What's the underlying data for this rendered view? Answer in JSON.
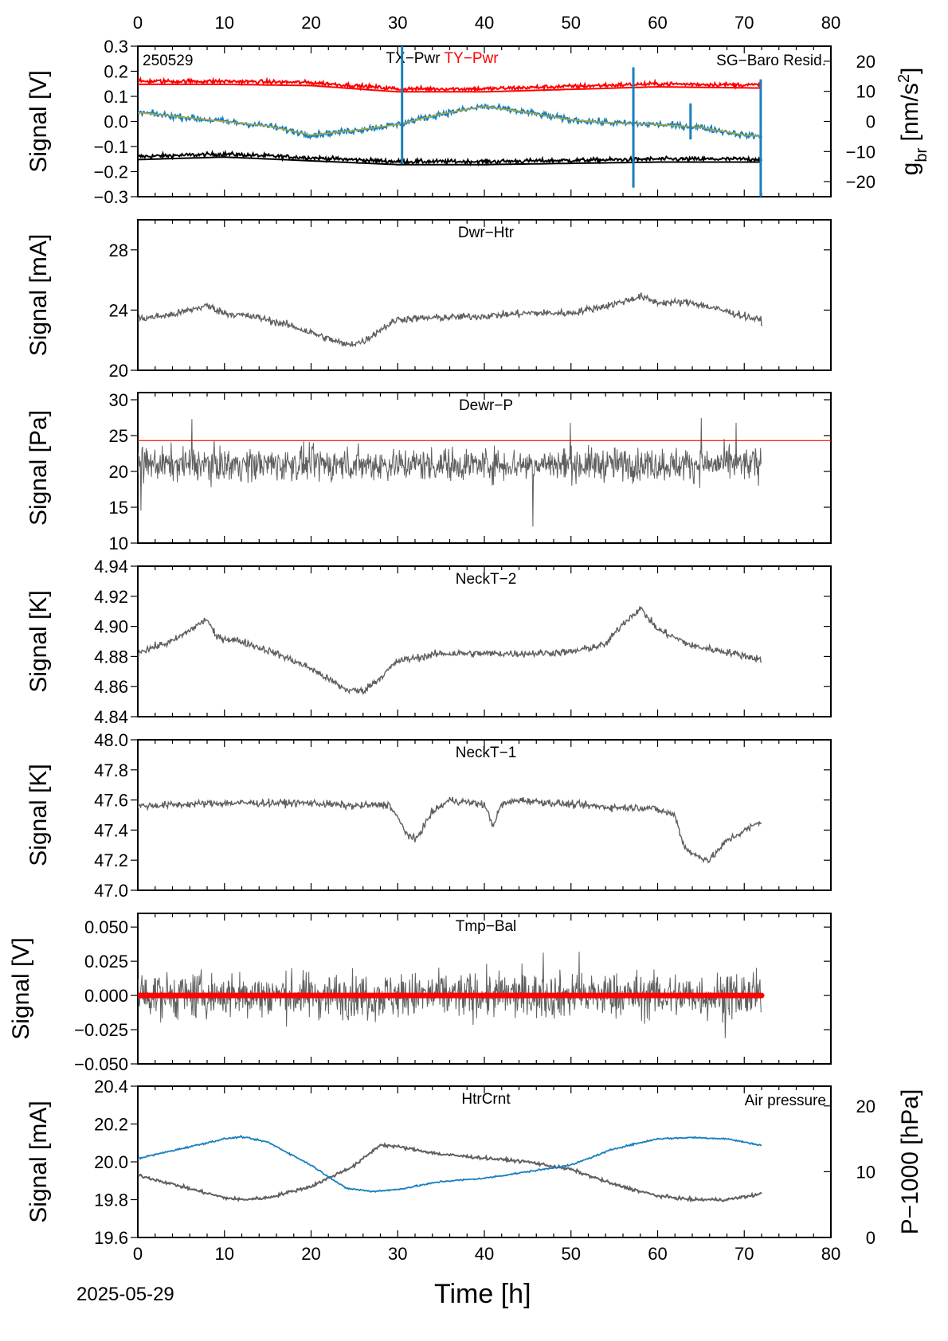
{
  "date_label": "2025-05-29",
  "xaxis": {
    "label": "Time [h]",
    "range": [
      0,
      80
    ],
    "ticks": [
      "0",
      "10",
      "20",
      "30",
      "40",
      "50",
      "60",
      "70",
      "80"
    ]
  },
  "colors": {
    "trace": "#5f5f5f",
    "red": "#ff0000",
    "blue": "#1a7fbf",
    "olive": "#a8a838",
    "black": "#000000"
  },
  "chart_data": [
    {
      "type": "line",
      "title": "TX−Pwr",
      "title2": "TY−Pwr",
      "corner_label": "250529",
      "right_label": "SG−Baro Resid.",
      "ylabel": "Signal [V]",
      "ylim": [
        -0.3,
        0.3
      ],
      "yticks": [
        "0.3",
        "0.2",
        "0.1",
        "0.0",
        "−0.1",
        "−0.2",
        "−0.3"
      ],
      "y2label_base": "g",
      "y2label_sub": "br",
      "y2label_rest": " [nm/s",
      "y2label_sup": "2",
      "y2label_end": "]",
      "y2lim": [
        -25,
        25
      ],
      "y2ticks": [
        "20",
        "10",
        "0",
        "−10",
        "−20"
      ],
      "series": [
        {
          "name": "TX−Pwr",
          "x": [
            0,
            10,
            20,
            30,
            40,
            50,
            60,
            72
          ],
          "y": [
            -0.14,
            -0.13,
            -0.145,
            -0.16,
            -0.16,
            -0.155,
            -0.15,
            -0.15
          ]
        },
        {
          "name": "TY−Pwr",
          "x": [
            0,
            10,
            20,
            30,
            40,
            50,
            60,
            72
          ],
          "y": [
            0.16,
            0.16,
            0.155,
            0.13,
            0.13,
            0.14,
            0.15,
            0.145
          ]
        },
        {
          "name": "SG−Baro Resid.",
          "x": [
            0,
            5,
            10,
            15,
            20,
            25,
            30,
            35,
            40,
            45,
            50,
            55,
            60,
            65,
            70,
            72
          ],
          "y": [
            3,
            1.5,
            0,
            -1.5,
            -4.5,
            -3,
            -1,
            2.5,
            5,
            3,
            0.5,
            -0.5,
            -1,
            -2,
            -4.5,
            -5
          ]
        }
      ]
    },
    {
      "type": "line",
      "title": "Dwr−Htr",
      "ylabel": "Signal [mA]",
      "ylim": [
        20,
        30
      ],
      "yticks": [
        "28",
        "24",
        "20"
      ],
      "series": [
        {
          "x": [
            0,
            4,
            8,
            10,
            14,
            18,
            22,
            24,
            26,
            28,
            30,
            35,
            40,
            45,
            50,
            55,
            58,
            60,
            64,
            68,
            72
          ],
          "y": [
            23.4,
            23.7,
            24.3,
            23.8,
            23.5,
            22.9,
            22.1,
            21.7,
            21.9,
            22.7,
            23.4,
            23.5,
            23.6,
            23.8,
            23.8,
            24.4,
            24.9,
            24.5,
            24.5,
            23.9,
            23.3
          ]
        }
      ]
    },
    {
      "type": "line",
      "title": "Dewr−P",
      "ylabel": "Signal [Pa]",
      "ylim": [
        10,
        31
      ],
      "yticks": [
        "30",
        "25",
        "20",
        "15",
        "10"
      ],
      "reference_line": 24.3,
      "mean": 21,
      "series": [
        {
          "x": [
            0,
            72
          ],
          "y": [
            21,
            21
          ]
        }
      ]
    },
    {
      "type": "line",
      "title": "NeckT−2",
      "ylabel": "Signal [K]",
      "ylim": [
        4.84,
        4.94
      ],
      "yticks": [
        "4.94",
        "4.92",
        "4.90",
        "4.88",
        "4.86",
        "4.84"
      ],
      "series": [
        {
          "x": [
            0,
            4,
            8,
            9,
            12,
            16,
            20,
            24,
            26,
            28,
            30,
            35,
            40,
            45,
            50,
            54,
            56,
            58,
            60,
            64,
            68,
            72
          ],
          "y": [
            4.883,
            4.89,
            4.905,
            4.893,
            4.89,
            4.882,
            4.872,
            4.858,
            4.857,
            4.866,
            4.877,
            4.882,
            4.882,
            4.882,
            4.883,
            4.888,
            4.902,
            4.912,
            4.898,
            4.887,
            4.883,
            4.878
          ]
        }
      ]
    },
    {
      "type": "line",
      "title": "NeckT−1",
      "ylabel": "Signal [K]",
      "ylim": [
        47.0,
        48.0
      ],
      "yticks": [
        "48.0",
        "47.8",
        "47.6",
        "47.4",
        "47.2",
        "47.0"
      ],
      "series": [
        {
          "x": [
            0,
            5,
            10,
            20,
            25,
            29,
            30,
            31,
            32,
            34,
            36,
            40,
            41,
            42,
            44,
            50,
            55,
            59,
            62,
            63,
            64,
            66,
            68,
            72
          ],
          "y": [
            47.56,
            47.57,
            47.58,
            47.58,
            47.56,
            47.57,
            47.48,
            47.38,
            47.33,
            47.52,
            47.6,
            47.57,
            47.43,
            47.57,
            47.6,
            47.57,
            47.55,
            47.55,
            47.5,
            47.3,
            47.24,
            47.2,
            47.33,
            47.46
          ]
        }
      ]
    },
    {
      "type": "line",
      "title": "Tmp−Bal",
      "ylabel": "Signal [V]",
      "ylim": [
        -0.05,
        0.06
      ],
      "yticks": [
        "0.050",
        "0.025",
        "0.000",
        "−0.025",
        "−0.050"
      ],
      "mean": 0.0,
      "series": [
        {
          "x": [
            0,
            72
          ],
          "y": [
            0,
            0
          ]
        }
      ]
    },
    {
      "type": "line",
      "title": "HtrCrnt",
      "right_label": "Air pressure",
      "ylabel": "Signal [mA]",
      "ylim": [
        19.6,
        20.4
      ],
      "yticks": [
        "20.4",
        "20.2",
        "20.0",
        "19.8",
        "19.6"
      ],
      "y2label": "P−1000 [hPa]",
      "y2lim": [
        0,
        23
      ],
      "y2ticks": [
        "20",
        "10",
        "0"
      ],
      "series": [
        {
          "name": "HtrCrnt",
          "x": [
            0,
            5,
            10,
            12,
            15,
            20,
            25,
            28,
            30,
            35,
            40,
            45,
            50,
            55,
            60,
            64,
            68,
            72
          ],
          "y": [
            19.93,
            19.87,
            19.81,
            19.8,
            19.81,
            19.87,
            19.98,
            20.09,
            20.08,
            20.04,
            20.02,
            20.0,
            19.96,
            19.88,
            19.82,
            19.8,
            19.8,
            19.83
          ]
        },
        {
          "name": "Air pressure",
          "x": [
            0,
            5,
            10,
            12,
            15,
            20,
            24,
            27,
            30,
            35,
            40,
            45,
            50,
            55,
            60,
            64,
            68,
            72
          ],
          "y": [
            12,
            13.5,
            15,
            15.3,
            14.5,
            11,
            7.5,
            7,
            7.3,
            8.5,
            9,
            10,
            11,
            13.5,
            15,
            15.2,
            15,
            14
          ]
        }
      ]
    }
  ]
}
